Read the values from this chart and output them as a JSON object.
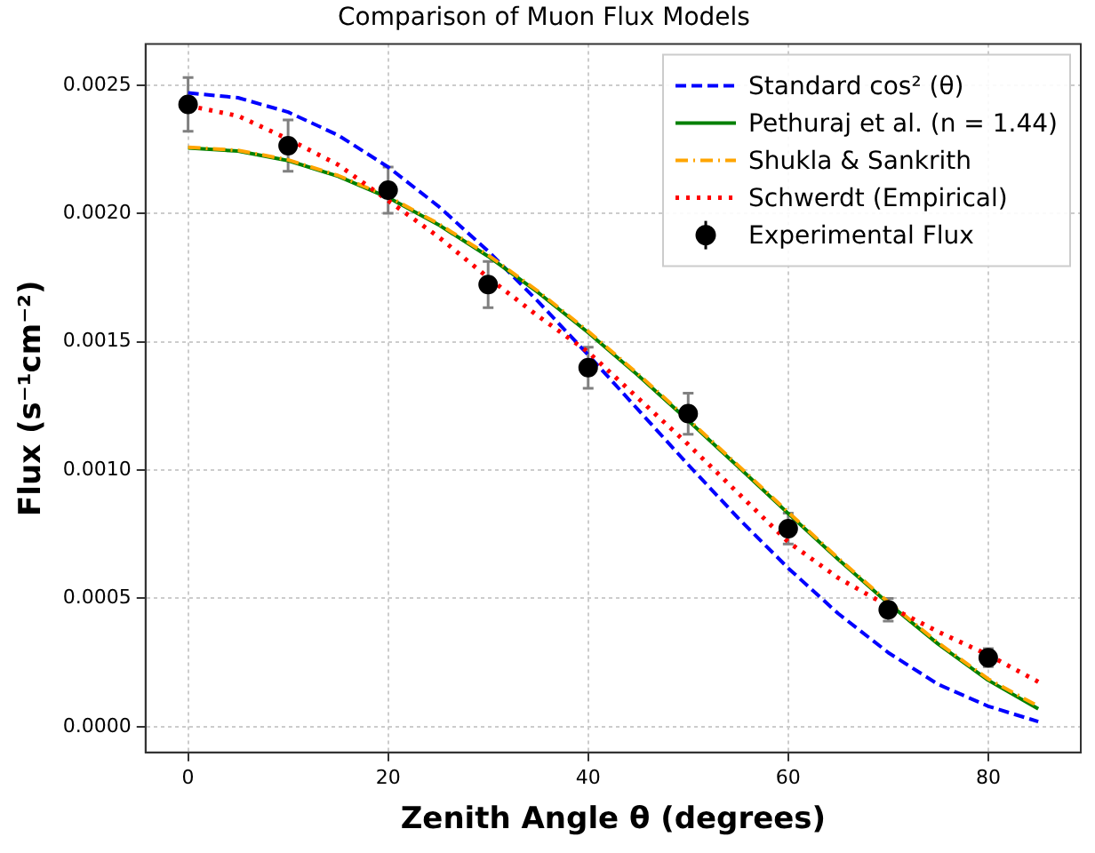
{
  "chart_data": {
    "type": "line",
    "title": "Comparison of Muon Flux Models",
    "xlabel": "Zenith Angle θ (degrees)",
    "ylabel": "Flux (s⁻¹cm⁻²)",
    "x": [
      0,
      5,
      10,
      15,
      20,
      25,
      30,
      35,
      40,
      45,
      50,
      55,
      60,
      65,
      70,
      75,
      80,
      85
    ],
    "xlim": [
      -4.25,
      89.25
    ],
    "xticks": [
      0,
      20,
      40,
      60,
      80
    ],
    "ylim": [
      -0.0001,
      0.00266
    ],
    "yticks": [
      {
        "value": 0,
        "label": "0.0000"
      },
      {
        "value": 0.0005,
        "label": "0.0005"
      },
      {
        "value": 0.001,
        "label": "0.0010"
      },
      {
        "value": 0.0015,
        "label": "0.0015"
      },
      {
        "value": 0.002,
        "label": "0.0020"
      },
      {
        "value": 0.0025,
        "label": "0.0025"
      }
    ],
    "grid": true,
    "legend": "top right",
    "marker": "none",
    "series": [
      {
        "name": "Standard cos² (θ)",
        "line_style": "dashed",
        "color": "#0000ff",
        "values": [
          0.00247,
          0.002451,
          0.002395,
          0.002305,
          0.002181,
          0.002029,
          0.001853,
          0.001657,
          0.001449,
          0.001235,
          0.001021,
          0.000813,
          0.000618,
          0.000441,
          0.000289,
          0.000165,
          8e-05,
          2e-05
        ]
      },
      {
        "name": "Pethuraj et al. (n = 1.44)",
        "line_style": "solid",
        "color": "#008000",
        "values": [
          0.002255,
          0.002243,
          0.002206,
          0.002145,
          0.002062,
          0.001957,
          0.001833,
          0.001692,
          0.001536,
          0.001369,
          0.001193,
          0.001013,
          0.000831,
          0.000652,
          0.000481,
          0.000322,
          0.000181,
          7e-05
        ]
      },
      {
        "name": "Shukla & Sankrith",
        "line_style": "dashdot",
        "color": "#ffa500",
        "values": [
          0.002258,
          0.002246,
          0.002209,
          0.002148,
          0.002066,
          0.001961,
          0.001838,
          0.001697,
          0.001541,
          0.001374,
          0.001198,
          0.001018,
          0.000836,
          0.000657,
          0.000486,
          0.000327,
          0.000186,
          8e-05
        ]
      },
      {
        "name": "Schwerdt (Empirical)",
        "line_style": "dotted",
        "color": "#ff0000",
        "values": [
          0.00242,
          0.00238,
          0.00229,
          0.00219,
          0.00205,
          0.00191,
          0.00175,
          0.0016,
          0.00146,
          0.00128,
          0.0011,
          0.00091,
          0.00072,
          0.00058,
          0.00047,
          0.00037,
          0.00028,
          0.000175
        ]
      },
      {
        "name": "Experimental Flux",
        "type": "scatter",
        "marker": "circle",
        "color": "#000000",
        "x": [
          0,
          10,
          20,
          30,
          40,
          50,
          60,
          70,
          80
        ],
        "values": [
          0.002425,
          0.002264,
          0.002091,
          0.001723,
          0.001399,
          0.00122,
          0.000772,
          0.000456,
          0.000269
        ],
        "errors": [
          0.000105,
          0.0001,
          9e-05,
          9e-05,
          8e-05,
          8e-05,
          6e-05,
          4.4e-05,
          3.5e-05
        ]
      }
    ]
  }
}
